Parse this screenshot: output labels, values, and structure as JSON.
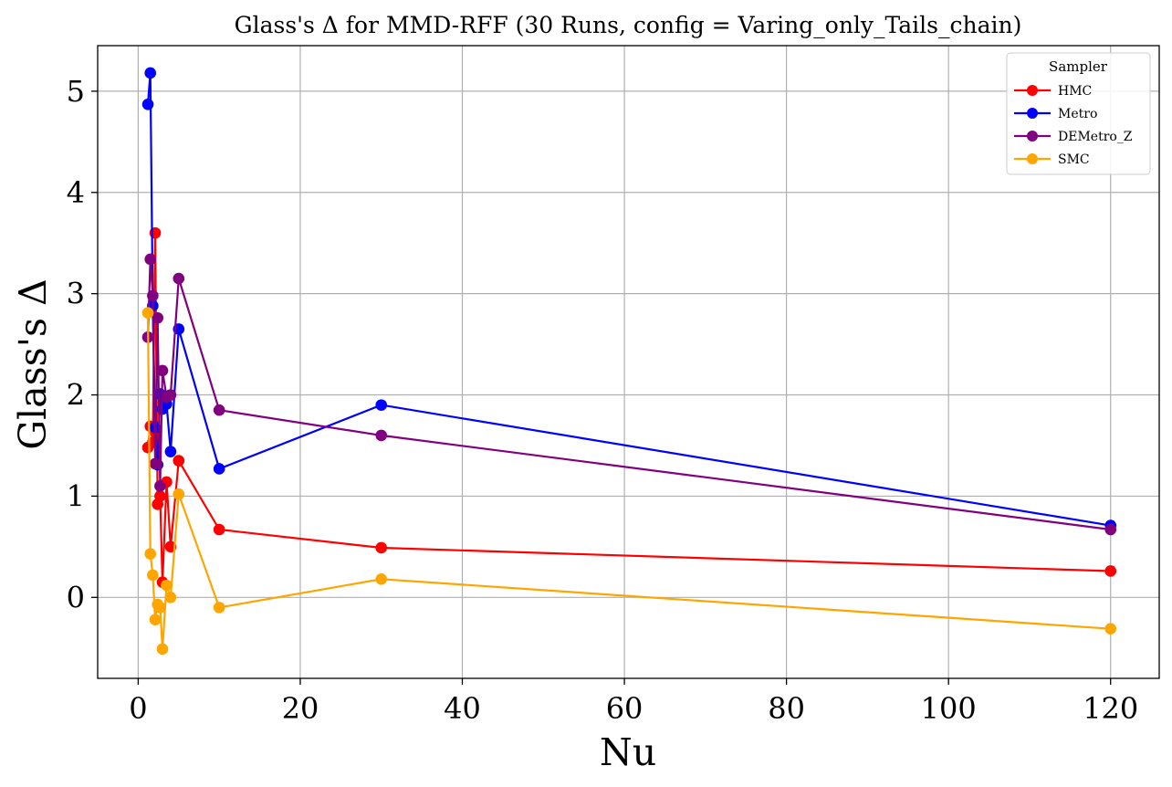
{
  "chart_data": {
    "type": "line",
    "title": "Glass's Δ for MMD-RFF (30 Runs, config = Varing_only_Tails_chain)",
    "xlabel": "Nu",
    "ylabel": "Glass's Δ",
    "xlim": [
      -5,
      126
    ],
    "ylim": [
      -0.8,
      5.45
    ],
    "xticks": [
      0,
      20,
      40,
      60,
      80,
      100,
      120
    ],
    "yticks": [
      0,
      1,
      2,
      3,
      4,
      5
    ],
    "grid": true,
    "legend": {
      "title": "Sampler",
      "position": "top-right"
    },
    "x": [
      1.2,
      1.5,
      1.8,
      2.1,
      2.4,
      2.7,
      3.0,
      3.5,
      4.0,
      5.0,
      10.0,
      30.0,
      120.0
    ],
    "series": [
      {
        "name": "HMC",
        "color": "#ff0000",
        "values": [
          1.48,
          1.69,
          1.53,
          3.6,
          0.92,
          1.0,
          0.15,
          1.14,
          0.5,
          1.35,
          0.67,
          0.49,
          0.26
        ]
      },
      {
        "name": "Metro",
        "color": "#0000ff",
        "values": [
          4.87,
          5.18,
          2.88,
          1.68,
          1.31,
          2.01,
          1.86,
          1.91,
          1.44,
          2.65,
          1.27,
          1.9,
          0.71
        ]
      },
      {
        "name": "DEMetro_Z",
        "color": "#800080",
        "values": [
          2.57,
          3.34,
          2.98,
          1.32,
          2.76,
          1.1,
          2.24,
          1.98,
          2.0,
          3.15,
          1.85,
          1.6,
          0.67
        ]
      },
      {
        "name": "SMC",
        "color": "#ffa500",
        "values": [
          2.81,
          0.43,
          0.22,
          -0.22,
          -0.07,
          -0.1,
          -0.51,
          0.12,
          0.0,
          1.02,
          -0.1,
          0.18,
          -0.31
        ]
      }
    ]
  }
}
